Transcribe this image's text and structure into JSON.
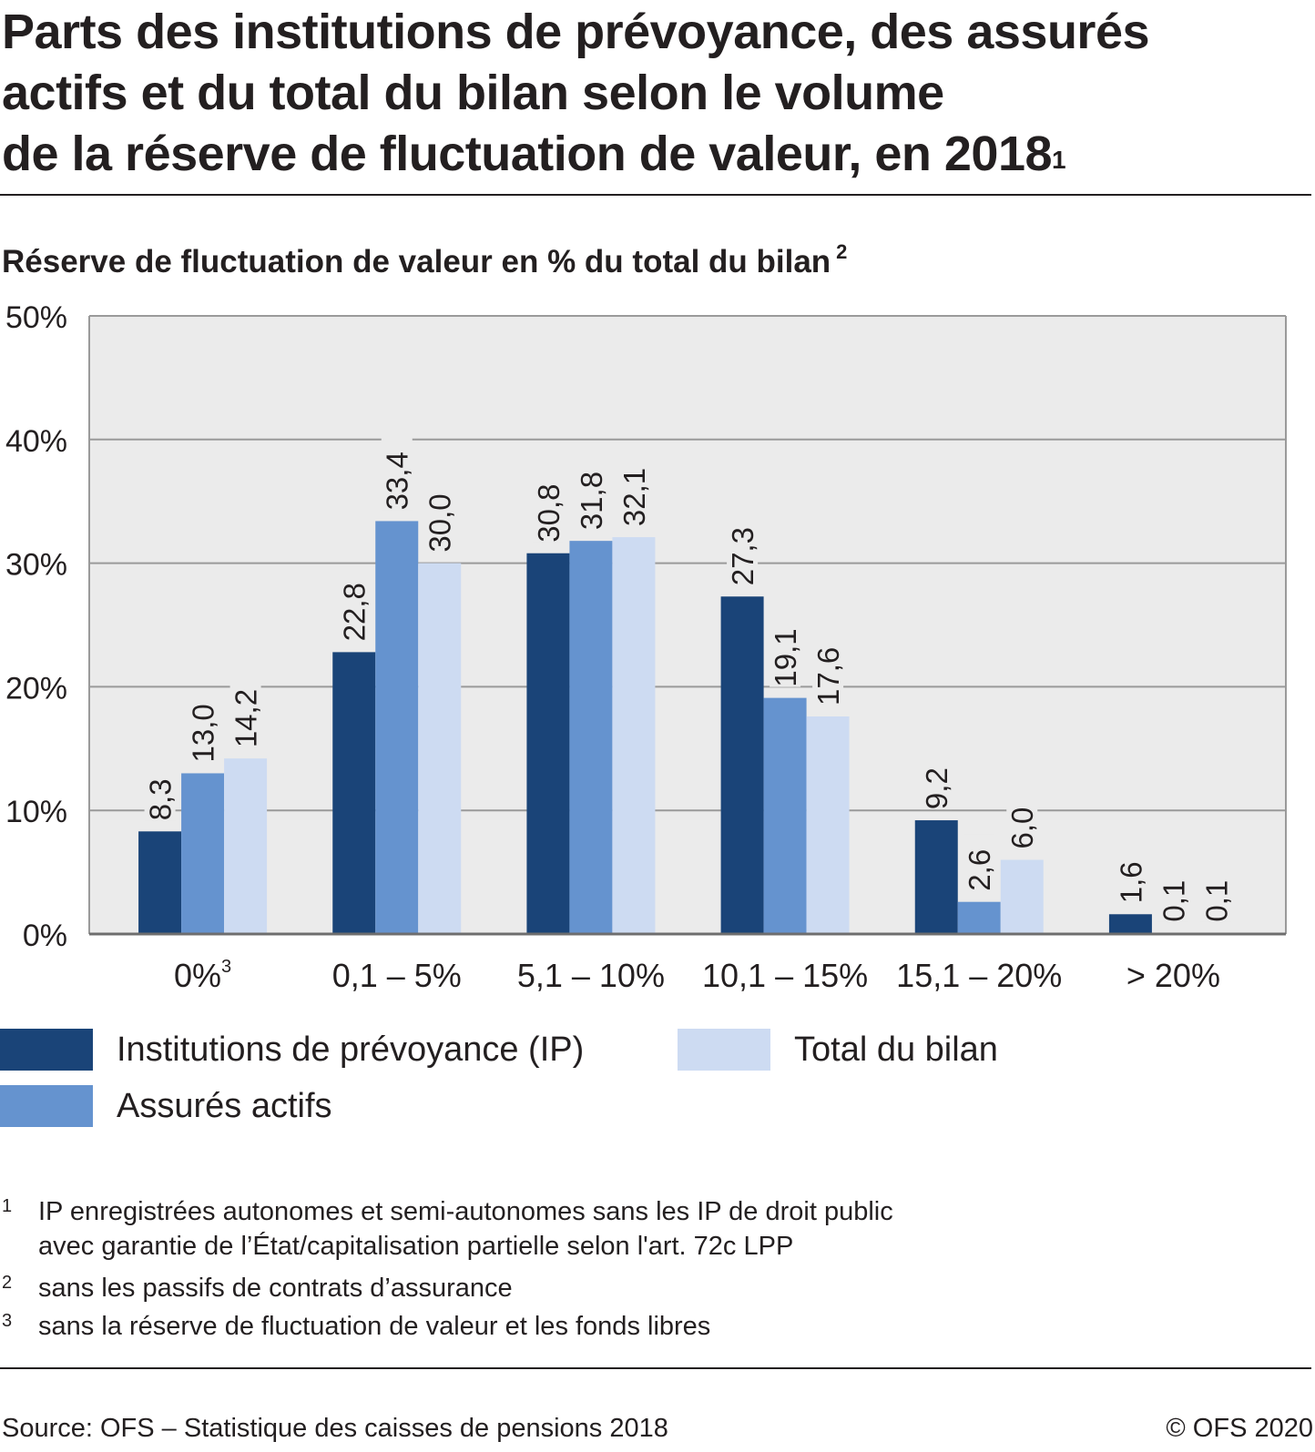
{
  "title": {
    "line1": "Parts des institutions de prévoyance, des assurés",
    "line2": "actifs et du total du bilan selon le volume",
    "line3": "de la réserve de fluctuation de valeur, en 2018",
    "note_ref": "1"
  },
  "subtitle": {
    "text": "Réserve de fluctuation de valeur en % du total du bilan",
    "note_ref": "2"
  },
  "chart_data": {
    "type": "bar",
    "categories": [
      "0%",
      "0,1 – 5%",
      "5,1 – 10%",
      "10,1 – 15%",
      "15,1 – 20%",
      "> 20%"
    ],
    "category_note_refs": [
      "3",
      "",
      "",
      "",
      "",
      ""
    ],
    "series": [
      {
        "name": "Institutions de prévoyance (IP)",
        "color": "#1a4478",
        "values": [
          8.3,
          22.8,
          30.8,
          27.3,
          9.2,
          1.6
        ],
        "labels": [
          "8,3",
          "22,8",
          "30,8",
          "27,3",
          "9,2",
          "1,6"
        ]
      },
      {
        "name": "Assurés actifs",
        "color": "#6593cf",
        "values": [
          13.0,
          33.4,
          31.8,
          19.1,
          2.6,
          0.1
        ],
        "labels": [
          "13,0",
          "33,4",
          "31,8",
          "19,1",
          "2,6",
          "0,1"
        ]
      },
      {
        "name": "Total du bilan",
        "color": "#cddbf2",
        "values": [
          14.2,
          30.0,
          32.1,
          17.6,
          6.0,
          0.1
        ],
        "labels": [
          "14,2",
          "30,0",
          "32,1",
          "17,6",
          "6,0",
          "0,1"
        ]
      }
    ],
    "yticks": [
      0,
      10,
      20,
      30,
      40,
      50
    ],
    "ytick_labels": [
      "0%",
      "10%",
      "20%",
      "30%",
      "40%",
      "50%"
    ],
    "ylim": [
      0,
      50
    ],
    "grid": true,
    "plot_background": "#ebebeb",
    "data_label_orientation": "vertical",
    "legend_position": "bottom"
  },
  "footnotes": [
    {
      "num": "1",
      "lines": [
        "IP enregistrées autonomes et semi-autonomes sans les IP de droit public",
        "avec garantie de l’État/capitalisation partielle selon l'art. 72c LPP"
      ]
    },
    {
      "num": "2",
      "lines": [
        "sans les passifs de contrats d’assurance"
      ]
    },
    {
      "num": "3",
      "lines": [
        "sans la réserve de fluctuation de valeur et les fonds libres"
      ]
    }
  ],
  "source": "Source: OFS – Statistique des caisses de pensions 2018",
  "copyright": "© OFS 2020"
}
